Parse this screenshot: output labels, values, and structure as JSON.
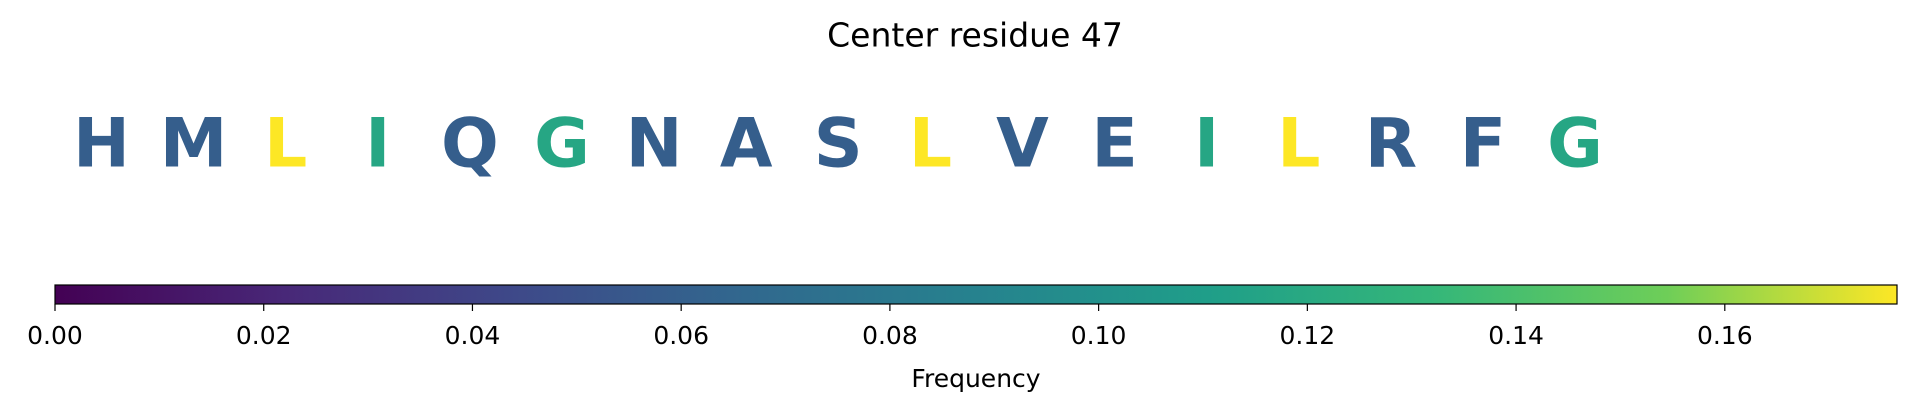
{
  "chart_data": {
    "type": "colored-sequence",
    "title": "Center residue 47",
    "categories": [
      "H",
      "M",
      "L",
      "I",
      "Q",
      "G",
      "N",
      "A",
      "S",
      "L",
      "V",
      "E",
      "I",
      "L",
      "R",
      "F",
      "G"
    ],
    "values": [
      0.0588,
      0.0588,
      0.1765,
      0.1176,
      0.0588,
      0.1176,
      0.0588,
      0.0588,
      0.0588,
      0.1765,
      0.0588,
      0.0588,
      0.1176,
      0.1765,
      0.0588,
      0.0588,
      0.1176
    ],
    "colormap": "viridis",
    "colorbar_label": "Frequency",
    "clim": [
      0,
      0.1765
    ],
    "cticks": [
      {
        "value": 0,
        "label": "0.00"
      },
      {
        "value": 0.02,
        "label": "0.02"
      },
      {
        "value": 0.04,
        "label": "0.04"
      },
      {
        "value": 0.06,
        "label": "0.06"
      },
      {
        "value": 0.08,
        "label": "0.08"
      },
      {
        "value": 0.1,
        "label": "0.10"
      },
      {
        "value": 0.12,
        "label": "0.12"
      },
      {
        "value": 0.14,
        "label": "0.14"
      },
      {
        "value": 0.16,
        "label": "0.16"
      }
    ]
  }
}
